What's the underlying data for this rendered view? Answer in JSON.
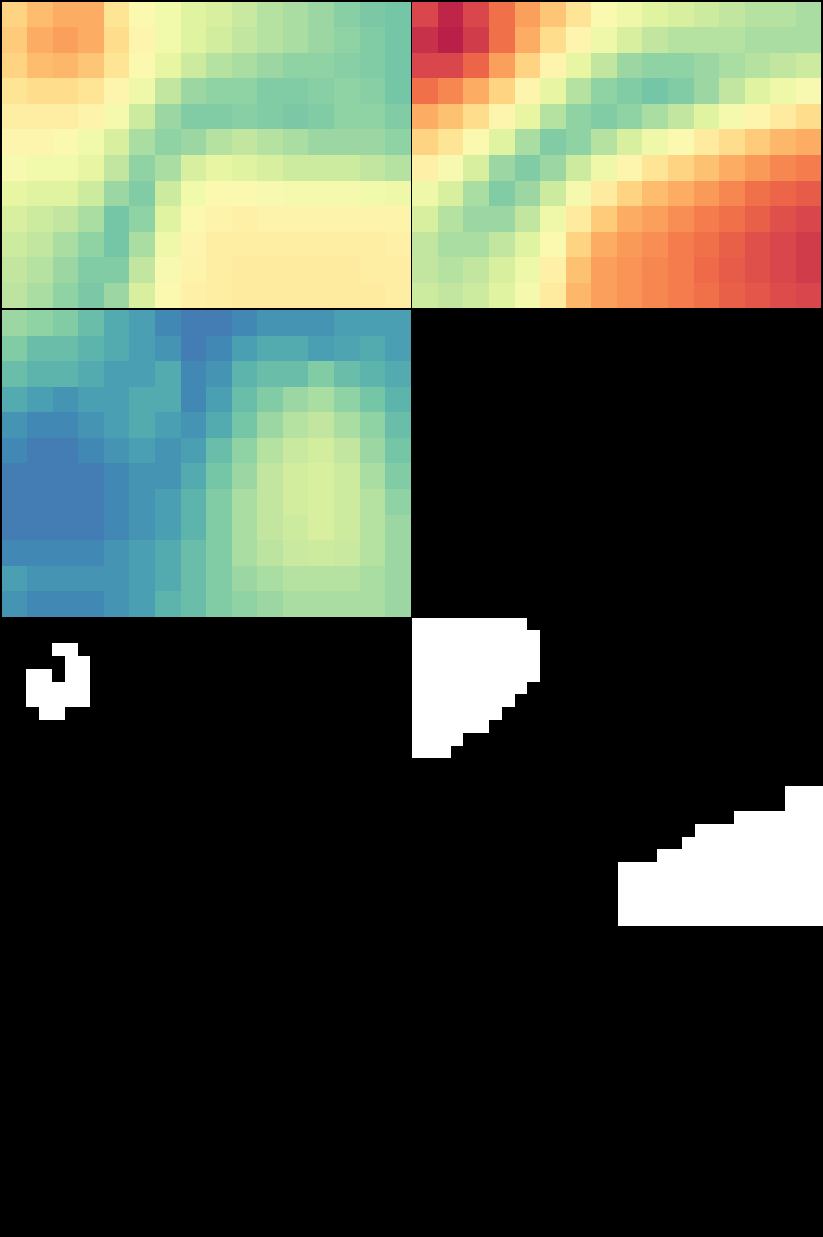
{
  "chart_data": [
    {
      "type": "heatmap",
      "tick_labels": false,
      "value_range": [
        0,
        1
      ],
      "cells": [
        [
          0.38,
          0.33,
          0.3,
          0.3,
          0.42,
          0.5,
          0.55,
          0.6,
          0.62,
          0.65,
          0.68,
          0.7,
          0.72,
          0.75,
          0.77,
          0.78
        ],
        [
          0.36,
          0.3,
          0.28,
          0.3,
          0.4,
          0.48,
          0.55,
          0.6,
          0.63,
          0.66,
          0.68,
          0.7,
          0.72,
          0.74,
          0.76,
          0.78
        ],
        [
          0.38,
          0.33,
          0.32,
          0.35,
          0.42,
          0.5,
          0.58,
          0.64,
          0.68,
          0.7,
          0.72,
          0.74,
          0.74,
          0.75,
          0.76,
          0.78
        ],
        [
          0.42,
          0.4,
          0.4,
          0.42,
          0.48,
          0.56,
          0.66,
          0.72,
          0.74,
          0.74,
          0.76,
          0.76,
          0.75,
          0.74,
          0.75,
          0.78
        ],
        [
          0.45,
          0.45,
          0.45,
          0.47,
          0.54,
          0.64,
          0.72,
          0.76,
          0.76,
          0.75,
          0.76,
          0.77,
          0.76,
          0.74,
          0.74,
          0.76
        ],
        [
          0.48,
          0.48,
          0.5,
          0.55,
          0.62,
          0.7,
          0.74,
          0.72,
          0.68,
          0.66,
          0.68,
          0.7,
          0.72,
          0.72,
          0.72,
          0.74
        ],
        [
          0.52,
          0.55,
          0.55,
          0.58,
          0.66,
          0.74,
          0.7,
          0.62,
          0.58,
          0.6,
          0.62,
          0.64,
          0.64,
          0.64,
          0.66,
          0.68
        ],
        [
          0.58,
          0.6,
          0.6,
          0.64,
          0.72,
          0.76,
          0.64,
          0.55,
          0.5,
          0.5,
          0.52,
          0.54,
          0.54,
          0.54,
          0.55,
          0.56
        ],
        [
          0.62,
          0.64,
          0.66,
          0.7,
          0.78,
          0.74,
          0.6,
          0.5,
          0.47,
          0.46,
          0.47,
          0.47,
          0.47,
          0.47,
          0.47,
          0.47
        ],
        [
          0.64,
          0.66,
          0.7,
          0.74,
          0.78,
          0.7,
          0.56,
          0.48,
          0.45,
          0.45,
          0.45,
          0.45,
          0.45,
          0.45,
          0.45,
          0.46
        ],
        [
          0.66,
          0.68,
          0.72,
          0.76,
          0.76,
          0.66,
          0.52,
          0.47,
          0.45,
          0.44,
          0.44,
          0.44,
          0.44,
          0.44,
          0.45,
          0.45
        ],
        [
          0.67,
          0.7,
          0.74,
          0.77,
          0.72,
          0.62,
          0.5,
          0.46,
          0.45,
          0.44,
          0.44,
          0.44,
          0.44,
          0.44,
          0.44,
          0.45
        ]
      ]
    },
    {
      "type": "heatmap",
      "tick_labels": false,
      "value_range": [
        0,
        1
      ],
      "cells": [
        [
          0.12,
          0.06,
          0.12,
          0.2,
          0.28,
          0.35,
          0.42,
          0.5,
          0.56,
          0.6,
          0.62,
          0.64,
          0.66,
          0.68,
          0.68,
          0.7
        ],
        [
          0.08,
          0.05,
          0.1,
          0.2,
          0.3,
          0.4,
          0.48,
          0.56,
          0.62,
          0.66,
          0.68,
          0.68,
          0.68,
          0.7,
          0.7,
          0.7
        ],
        [
          0.12,
          0.12,
          0.18,
          0.28,
          0.38,
          0.48,
          0.58,
          0.66,
          0.72,
          0.74,
          0.74,
          0.72,
          0.7,
          0.68,
          0.66,
          0.64
        ],
        [
          0.2,
          0.24,
          0.3,
          0.38,
          0.48,
          0.58,
          0.68,
          0.74,
          0.76,
          0.78,
          0.76,
          0.72,
          0.66,
          0.6,
          0.56,
          0.52
        ],
        [
          0.3,
          0.34,
          0.4,
          0.48,
          0.58,
          0.68,
          0.74,
          0.76,
          0.74,
          0.7,
          0.66,
          0.6,
          0.54,
          0.48,
          0.44,
          0.4
        ],
        [
          0.38,
          0.42,
          0.5,
          0.6,
          0.7,
          0.76,
          0.74,
          0.68,
          0.62,
          0.56,
          0.5,
          0.44,
          0.4,
          0.36,
          0.32,
          0.3
        ],
        [
          0.46,
          0.52,
          0.62,
          0.72,
          0.76,
          0.72,
          0.64,
          0.56,
          0.48,
          0.42,
          0.38,
          0.34,
          0.3,
          0.27,
          0.24,
          0.22
        ],
        [
          0.56,
          0.62,
          0.7,
          0.76,
          0.72,
          0.64,
          0.54,
          0.44,
          0.38,
          0.33,
          0.3,
          0.27,
          0.24,
          0.2,
          0.18,
          0.16
        ],
        [
          0.62,
          0.68,
          0.72,
          0.72,
          0.66,
          0.56,
          0.44,
          0.36,
          0.3,
          0.28,
          0.25,
          0.22,
          0.2,
          0.17,
          0.14,
          0.12
        ],
        [
          0.66,
          0.7,
          0.7,
          0.66,
          0.6,
          0.5,
          0.38,
          0.3,
          0.27,
          0.25,
          0.22,
          0.2,
          0.17,
          0.14,
          0.12,
          0.1
        ],
        [
          0.66,
          0.68,
          0.66,
          0.62,
          0.56,
          0.46,
          0.34,
          0.28,
          0.26,
          0.24,
          0.22,
          0.19,
          0.16,
          0.14,
          0.12,
          0.1
        ],
        [
          0.64,
          0.66,
          0.64,
          0.6,
          0.54,
          0.44,
          0.32,
          0.28,
          0.26,
          0.24,
          0.22,
          0.2,
          0.17,
          0.15,
          0.13,
          0.12
        ]
      ]
    },
    {
      "type": "heatmap",
      "tick_labels": false,
      "value_range": [
        0,
        1
      ],
      "cells": [
        [
          0.72,
          0.74,
          0.76,
          0.8,
          0.84,
          0.86,
          0.9,
          0.92,
          0.92,
          0.9,
          0.88,
          0.88,
          0.88,
          0.86,
          0.86,
          0.86
        ],
        [
          0.76,
          0.8,
          0.8,
          0.82,
          0.84,
          0.86,
          0.88,
          0.92,
          0.9,
          0.86,
          0.84,
          0.84,
          0.86,
          0.85,
          0.84,
          0.86
        ],
        [
          0.8,
          0.82,
          0.82,
          0.84,
          0.86,
          0.86,
          0.84,
          0.9,
          0.88,
          0.82,
          0.8,
          0.8,
          0.76,
          0.8,
          0.82,
          0.84
        ],
        [
          0.84,
          0.86,
          0.88,
          0.86,
          0.86,
          0.84,
          0.84,
          0.9,
          0.86,
          0.8,
          0.76,
          0.72,
          0.7,
          0.74,
          0.78,
          0.82
        ],
        [
          0.88,
          0.9,
          0.9,
          0.88,
          0.86,
          0.84,
          0.86,
          0.88,
          0.84,
          0.78,
          0.72,
          0.68,
          0.66,
          0.7,
          0.74,
          0.8
        ],
        [
          0.9,
          0.92,
          0.92,
          0.9,
          0.88,
          0.86,
          0.88,
          0.86,
          0.8,
          0.74,
          0.68,
          0.65,
          0.63,
          0.66,
          0.72,
          0.78
        ],
        [
          0.92,
          0.92,
          0.92,
          0.92,
          0.9,
          0.88,
          0.88,
          0.84,
          0.78,
          0.72,
          0.66,
          0.63,
          0.62,
          0.64,
          0.7,
          0.76
        ],
        [
          0.92,
          0.92,
          0.92,
          0.92,
          0.9,
          0.88,
          0.86,
          0.82,
          0.76,
          0.7,
          0.66,
          0.63,
          0.62,
          0.64,
          0.68,
          0.74
        ],
        [
          0.92,
          0.92,
          0.92,
          0.92,
          0.9,
          0.88,
          0.86,
          0.82,
          0.76,
          0.7,
          0.66,
          0.64,
          0.62,
          0.64,
          0.68,
          0.72
        ],
        [
          0.9,
          0.9,
          0.9,
          0.9,
          0.88,
          0.86,
          0.84,
          0.8,
          0.76,
          0.7,
          0.67,
          0.65,
          0.64,
          0.65,
          0.68,
          0.72
        ],
        [
          0.86,
          0.88,
          0.88,
          0.88,
          0.88,
          0.86,
          0.84,
          0.8,
          0.76,
          0.72,
          0.7,
          0.68,
          0.68,
          0.68,
          0.7,
          0.72
        ],
        [
          0.88,
          0.9,
          0.9,
          0.9,
          0.88,
          0.86,
          0.82,
          0.8,
          0.76,
          0.74,
          0.72,
          0.7,
          0.7,
          0.7,
          0.7,
          0.72
        ]
      ]
    },
    {
      "type": "mask",
      "color": "#ffffff",
      "tick_labels": false,
      "runs": [
        [
          2,
          4,
          5
        ],
        [
          3,
          5,
          6
        ],
        [
          4,
          2,
          3
        ],
        [
          4,
          5,
          6
        ],
        [
          5,
          2,
          6
        ],
        [
          6,
          2,
          6
        ],
        [
          7,
          3,
          4
        ]
      ]
    },
    {
      "type": "mask",
      "color": "#ffffff",
      "tick_labels": false,
      "runs": []
    },
    {
      "type": "mask",
      "color": "#ffffff",
      "tick_labels": false,
      "runs": [
        [
          0,
          0,
          8
        ],
        [
          1,
          0,
          9
        ],
        [
          2,
          0,
          9
        ],
        [
          3,
          0,
          9
        ],
        [
          4,
          0,
          9
        ],
        [
          5,
          0,
          8
        ],
        [
          6,
          0,
          7
        ],
        [
          7,
          0,
          6
        ],
        [
          8,
          0,
          5
        ],
        [
          9,
          0,
          3
        ],
        [
          10,
          0,
          2
        ]
      ]
    },
    {
      "type": "mask",
      "color": "#ffffff",
      "tick_labels": false,
      "runs": []
    },
    {
      "type": "mask",
      "color": "#ffffff",
      "tick_labels": false,
      "runs": []
    },
    {
      "type": "mask",
      "color": "#ffffff",
      "tick_labels": false,
      "runs": []
    },
    {
      "type": "mask",
      "color": "#ffffff",
      "tick_labels": false,
      "runs": []
    },
    {
      "type": "mask",
      "color": "#ffffff",
      "tick_labels": false,
      "runs": [
        [
          1,
          13,
          15
        ],
        [
          2,
          13,
          15
        ],
        [
          3,
          9,
          15
        ],
        [
          4,
          6,
          15
        ],
        [
          5,
          5,
          15
        ],
        [
          6,
          3,
          15
        ],
        [
          7,
          0,
          15
        ],
        [
          8,
          0,
          15
        ],
        [
          9,
          0,
          15
        ],
        [
          10,
          0,
          15
        ],
        [
          11,
          0,
          15
        ]
      ]
    },
    {
      "type": "mask",
      "color": "#ffffff",
      "tick_labels": false,
      "runs": []
    },
    {
      "type": "mask",
      "color": "#ffffff",
      "tick_labels": false,
      "runs": []
    },
    {
      "type": "mask",
      "color": "#ffffff",
      "tick_labels": false,
      "runs": []
    },
    {
      "type": "mask",
      "color": "#ffffff",
      "tick_labels": false,
      "runs": []
    },
    {
      "type": "mask",
      "color": "#ffffff",
      "tick_labels": false,
      "runs": []
    },
    {
      "type": "mask",
      "color": "#ffffff",
      "tick_labels": false,
      "runs": []
    },
    {
      "type": "mask",
      "color": "#ffffff",
      "tick_labels": false,
      "runs": []
    },
    {
      "type": "mask",
      "color": "#ffffff",
      "tick_labels": false,
      "runs": []
    }
  ]
}
